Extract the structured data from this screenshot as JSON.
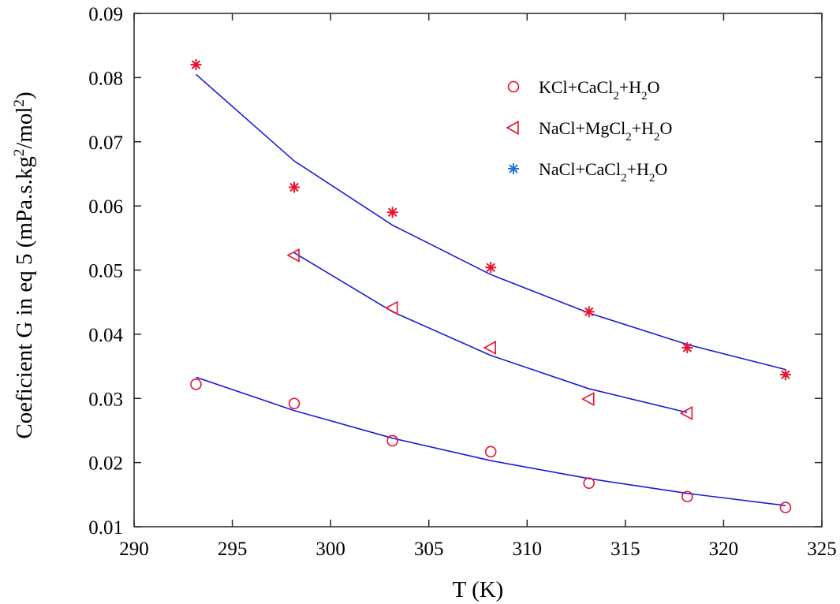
{
  "chart_data": {
    "type": "scatter",
    "xlabel": "T (K)",
    "ylabel": {
      "parts": [
        {
          "text": "Coeficient G in eq 5 (mPa.s.kg",
          "style": "normal"
        },
        {
          "text": "2",
          "style": "sup"
        },
        {
          "text": "/mol",
          "style": "normal"
        },
        {
          "text": "2",
          "style": "sup"
        },
        {
          "text": ")",
          "style": "normal"
        }
      ]
    },
    "xlim": [
      290,
      325
    ],
    "ylim": [
      0.01,
      0.09
    ],
    "xticks": [
      "290",
      "295",
      "300",
      "305",
      "310",
      "315",
      "320",
      "325"
    ],
    "yticks": [
      "0.01",
      "0.02",
      "0.03",
      "0.04",
      "0.05",
      "0.06",
      "0.07",
      "0.08",
      "0.09"
    ],
    "grid": false,
    "legend_position": "top-right",
    "series": [
      {
        "name": "KCl+CaCl2+H2O",
        "name_parts": [
          {
            "text": "KCl+CaCl",
            "style": "normal"
          },
          {
            "text": "2",
            "style": "sub"
          },
          {
            "text": "+H",
            "style": "normal"
          },
          {
            "text": "2",
            "style": "sub"
          },
          {
            "text": "O",
            "style": "normal"
          }
        ],
        "marker": "circle",
        "marker_color": "#e8112d",
        "legend_marker_color": "#e8112d",
        "points": {
          "x": [
            293.15,
            298.15,
            303.15,
            308.15,
            313.15,
            318.15,
            323.15
          ],
          "y": [
            0.0322,
            0.0292,
            0.0234,
            0.0217,
            0.0168,
            0.0147,
            0.013
          ]
        },
        "fit": {
          "x": [
            293.15,
            298.15,
            303.15,
            308.15,
            313.15,
            318.15,
            323.15
          ],
          "y": [
            0.0333,
            0.0281,
            0.0238,
            0.0203,
            0.0175,
            0.0152,
            0.0133
          ]
        },
        "line_color": "#1a1adb"
      },
      {
        "name": "NaCl+MgCl2+H2O",
        "name_parts": [
          {
            "text": "NaCl+MgCl",
            "style": "normal"
          },
          {
            "text": "2",
            "style": "sub"
          },
          {
            "text": "+H",
            "style": "normal"
          },
          {
            "text": "2",
            "style": "sub"
          },
          {
            "text": "O",
            "style": "normal"
          }
        ],
        "marker": "triangle-left",
        "marker_color": "#e8112d",
        "legend_marker_color": "#e8112d",
        "points": {
          "x": [
            298.15,
            303.15,
            308.15,
            313.15,
            318.15
          ],
          "y": [
            0.0523,
            0.0441,
            0.0379,
            0.0299,
            0.0277
          ]
        },
        "fit": {
          "x": [
            298.15,
            303.15,
            308.15,
            313.15,
            318.15
          ],
          "y": [
            0.0527,
            0.0435,
            0.0367,
            0.0315,
            0.0278
          ]
        },
        "line_color": "#1a1adb"
      },
      {
        "name": "NaCl+CaCl2+H2O",
        "name_parts": [
          {
            "text": "NaCl+CaCl",
            "style": "normal"
          },
          {
            "text": "2",
            "style": "sub"
          },
          {
            "text": "+H",
            "style": "normal"
          },
          {
            "text": "2",
            "style": "sub"
          },
          {
            "text": "O",
            "style": "normal"
          }
        ],
        "marker": "asterisk",
        "marker_color": "#e8112d",
        "legend_marker_color": "#1f77d4",
        "points": {
          "x": [
            293.15,
            298.15,
            303.15,
            308.15,
            313.15,
            318.15,
            323.15
          ],
          "y": [
            0.082,
            0.0629,
            0.059,
            0.0504,
            0.0435,
            0.0379,
            0.0337
          ]
        },
        "fit": {
          "x": [
            293.15,
            298.15,
            303.15,
            308.15,
            313.15,
            318.15,
            323.15
          ],
          "y": [
            0.0805,
            0.067,
            0.057,
            0.0493,
            0.0433,
            0.0384,
            0.0345
          ]
        },
        "line_color": "#1a1adb"
      }
    ]
  }
}
